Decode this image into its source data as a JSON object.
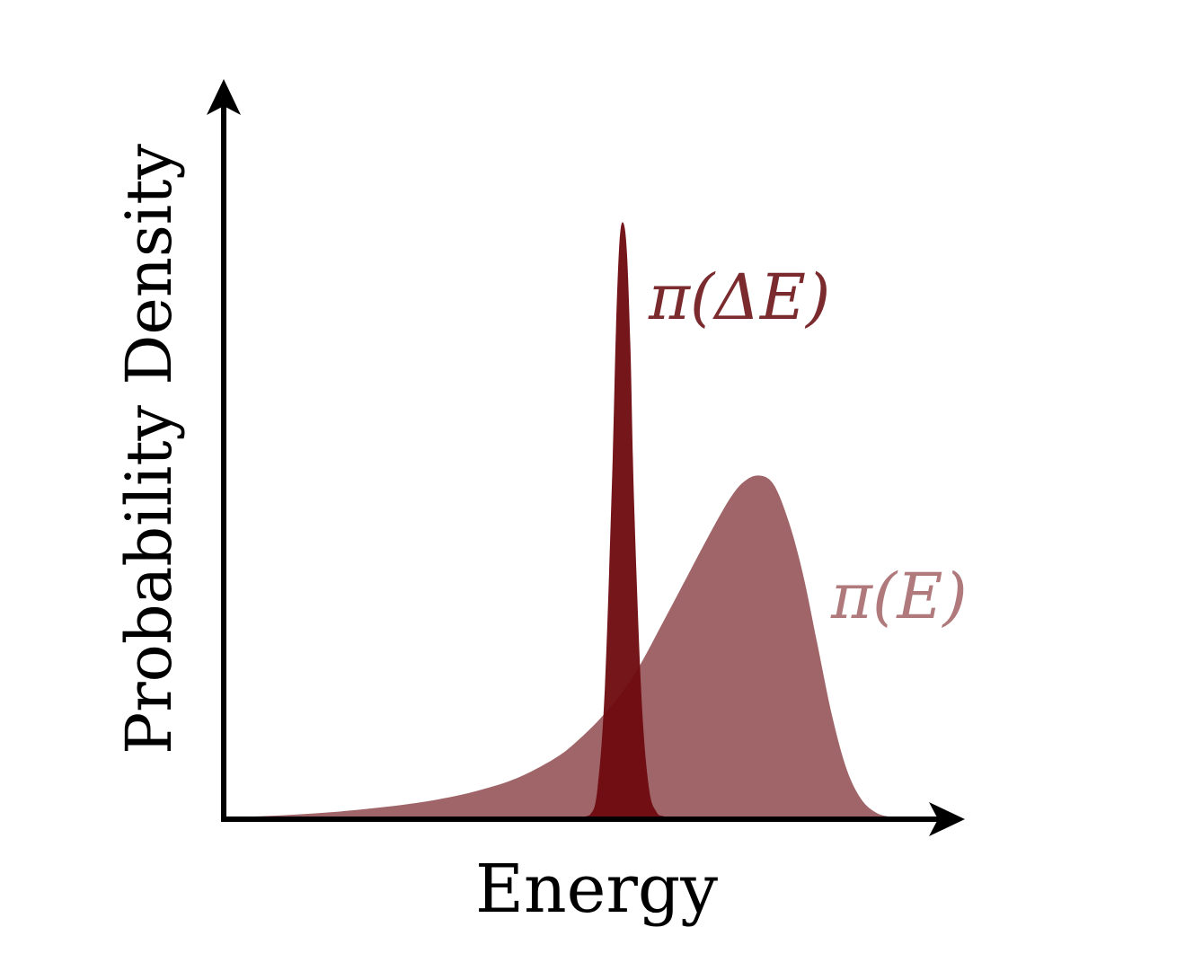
{
  "chart_data": {
    "type": "area",
    "title": "",
    "xlabel": "Energy",
    "ylabel": "Probability Density",
    "xlim": [
      0,
      1
    ],
    "ylim": [
      0,
      1
    ],
    "grid": false,
    "legend": "none",
    "ticks": false,
    "series": [
      {
        "name": "π(E)",
        "color": "#7b2a2e",
        "opacity": 0.72,
        "x": [
          0.0,
          0.05,
          0.1,
          0.15,
          0.2,
          0.25,
          0.3,
          0.35,
          0.4,
          0.45,
          0.48,
          0.52,
          0.56,
          0.6,
          0.63,
          0.66,
          0.69,
          0.71,
          0.73,
          0.75,
          0.77,
          0.79,
          0.81,
          0.83,
          0.85,
          0.87,
          0.89,
          0.91,
          0.93
        ],
        "values": [
          0.0,
          0.002,
          0.005,
          0.009,
          0.015,
          0.022,
          0.032,
          0.046,
          0.066,
          0.098,
          0.126,
          0.175,
          0.24,
          0.33,
          0.4,
          0.47,
          0.535,
          0.565,
          0.575,
          0.56,
          0.5,
          0.41,
          0.29,
          0.17,
          0.08,
          0.03,
          0.008,
          0.001,
          0.0
        ]
      },
      {
        "name": "π(ΔE)",
        "color": "#6e0a0f",
        "opacity": 0.95,
        "x": [
          0.48,
          0.5,
          0.51,
          0.52,
          0.53,
          0.535,
          0.54,
          0.545,
          0.55,
          0.555,
          0.56,
          0.57,
          0.58,
          0.59,
          0.6,
          0.62
        ],
        "values": [
          0.0,
          0.005,
          0.05,
          0.22,
          0.58,
          0.82,
          0.97,
          1.0,
          0.95,
          0.78,
          0.52,
          0.2,
          0.05,
          0.01,
          0.002,
          0.0
        ]
      }
    ]
  },
  "labels": {
    "xlabel": "Energy",
    "ylabel": "Probability Density",
    "series_delta": "π(ΔE)",
    "series_e": "π(E)"
  }
}
